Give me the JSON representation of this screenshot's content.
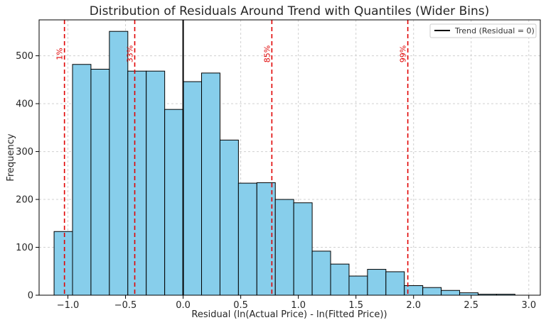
{
  "chart_data": {
    "type": "histogram",
    "title": "Distribution of Residuals Around Trend with Quantiles (Wider Bins)",
    "xlabel": "Residual (ln(Actual Price) - ln(Fitted Price))",
    "ylabel": "Frequency",
    "xlim": [
      -1.25,
      3.1
    ],
    "ylim": [
      0,
      575
    ],
    "xticks": [
      -1.0,
      -0.5,
      0.0,
      0.5,
      1.0,
      1.5,
      2.0,
      2.5,
      3.0
    ],
    "xtick_labels": [
      "−1.0",
      "−0.5",
      "0.0",
      "0.5",
      "1.0",
      "1.5",
      "2.0",
      "2.5",
      "3.0"
    ],
    "yticks": [
      0,
      100,
      200,
      300,
      400,
      500
    ],
    "ytick_labels": [
      "0",
      "100",
      "200",
      "300",
      "400",
      "500"
    ],
    "grid": true,
    "bar_color": "#87ceeb",
    "bin_edges": [
      -1.12,
      -0.96,
      -0.8,
      -0.64,
      -0.48,
      -0.32,
      -0.16,
      0.0,
      0.16,
      0.32,
      0.48,
      0.64,
      0.8,
      0.96,
      1.12,
      1.28,
      1.44,
      1.6,
      1.76,
      1.92,
      2.08,
      2.24,
      2.4,
      2.56,
      2.72,
      2.88
    ],
    "counts": [
      133,
      482,
      472,
      551,
      468,
      468,
      388,
      446,
      464,
      324,
      234,
      235,
      200,
      193,
      92,
      65,
      40,
      54,
      49,
      20,
      16,
      10,
      5,
      2,
      2
    ],
    "trend_line": {
      "x": 0.0,
      "label": "Trend (Residual = 0)",
      "color": "#000000"
    },
    "quantiles": [
      {
        "label": "1%",
        "x": -1.03
      },
      {
        "label": "33%",
        "x": -0.42
      },
      {
        "label": "85%",
        "x": 0.77
      },
      {
        "label": "99%",
        "x": 1.95
      }
    ],
    "quantile_color": "#e00000",
    "legend_placement": "top-right"
  }
}
